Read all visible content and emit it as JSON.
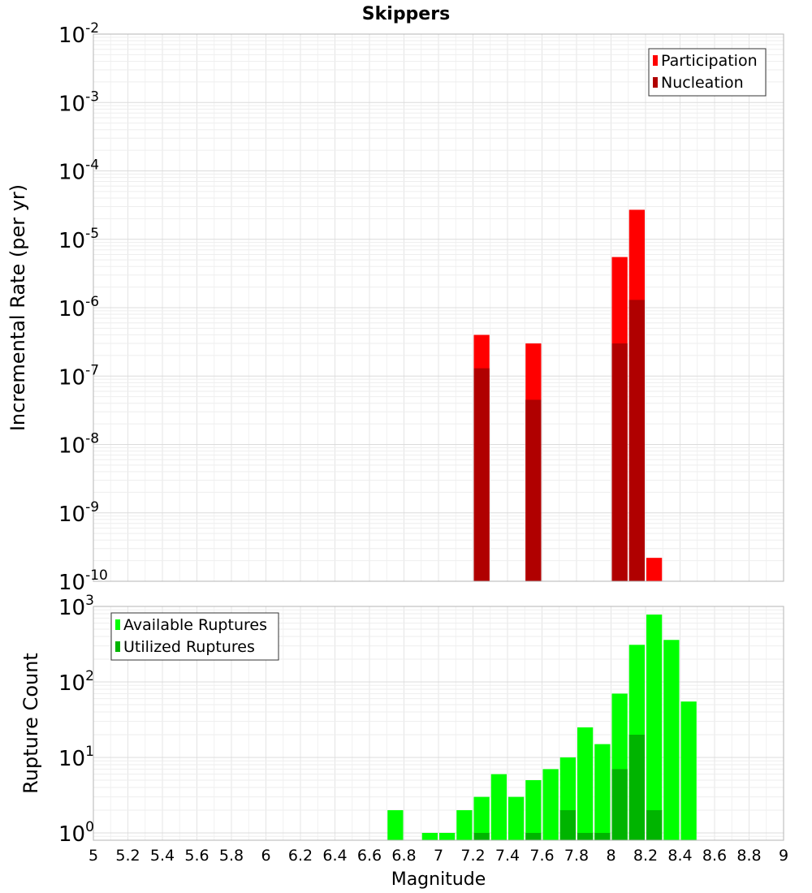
{
  "chart_data": {
    "title": "Skippers",
    "xlabel": "Magnitude",
    "xlim": [
      5,
      9
    ],
    "x_ticks": [
      "5",
      "5.2",
      "5.4",
      "5.6",
      "5.8",
      "6",
      "6.2",
      "6.4",
      "6.6",
      "6.8",
      "7",
      "7.2",
      "7.4",
      "7.6",
      "7.8",
      "8",
      "8.2",
      "8.4",
      "8.6",
      "8.8",
      "9"
    ],
    "bin_width": 0.1,
    "panels": [
      {
        "type": "bar",
        "ylabel": "Incremental Rate (per yr)",
        "yscale": "log",
        "ylim": [
          1e-10,
          0.01
        ],
        "y_tick_exponents": [
          "-2",
          "-3",
          "-4",
          "-5",
          "-6",
          "-7",
          "-8",
          "-9",
          "-10"
        ],
        "y_tick_base": "10",
        "grid": true,
        "legend_position": "top-right",
        "series": [
          {
            "name": "Participation",
            "color": "#ff0000",
            "points": [
              [
                7.25,
                4e-07
              ],
              [
                7.55,
                3e-07
              ],
              [
                8.05,
                5.5e-06
              ],
              [
                8.15,
                2.7e-05
              ],
              [
                8.25,
                2.2e-10
              ]
            ]
          },
          {
            "name": "Nucleation",
            "color": "#b00000",
            "points": [
              [
                7.25,
                1.3e-07
              ],
              [
                7.55,
                4.5e-08
              ],
              [
                8.05,
                3e-07
              ],
              [
                8.15,
                1.3e-06
              ]
            ]
          }
        ]
      },
      {
        "type": "bar",
        "ylabel": "Rupture Count",
        "yscale": "log",
        "ylim": [
          0.8,
          1000
        ],
        "y_tick_exponents": [
          "3",
          "2",
          "1",
          "0"
        ],
        "y_tick_base": "10",
        "grid": true,
        "legend_position": "top-left",
        "series": [
          {
            "name": "Available Ruptures",
            "color": "#00ff00",
            "points": [
              [
                6.75,
                2
              ],
              [
                6.95,
                1
              ],
              [
                7.05,
                1
              ],
              [
                7.15,
                2
              ],
              [
                7.25,
                3
              ],
              [
                7.35,
                6
              ],
              [
                7.45,
                3
              ],
              [
                7.55,
                5
              ],
              [
                7.65,
                7
              ],
              [
                7.75,
                10
              ],
              [
                7.85,
                25
              ],
              [
                7.95,
                15
              ],
              [
                8.05,
                70
              ],
              [
                8.15,
                310
              ],
              [
                8.25,
                780
              ],
              [
                8.35,
                360
              ],
              [
                8.45,
                55
              ]
            ]
          },
          {
            "name": "Utilized Ruptures",
            "color": "#00b400",
            "points": [
              [
                7.25,
                1
              ],
              [
                7.55,
                1
              ],
              [
                7.75,
                2
              ],
              [
                7.85,
                1
              ],
              [
                7.95,
                1
              ],
              [
                8.05,
                7
              ],
              [
                8.15,
                20
              ],
              [
                8.25,
                2
              ]
            ]
          }
        ]
      }
    ]
  }
}
